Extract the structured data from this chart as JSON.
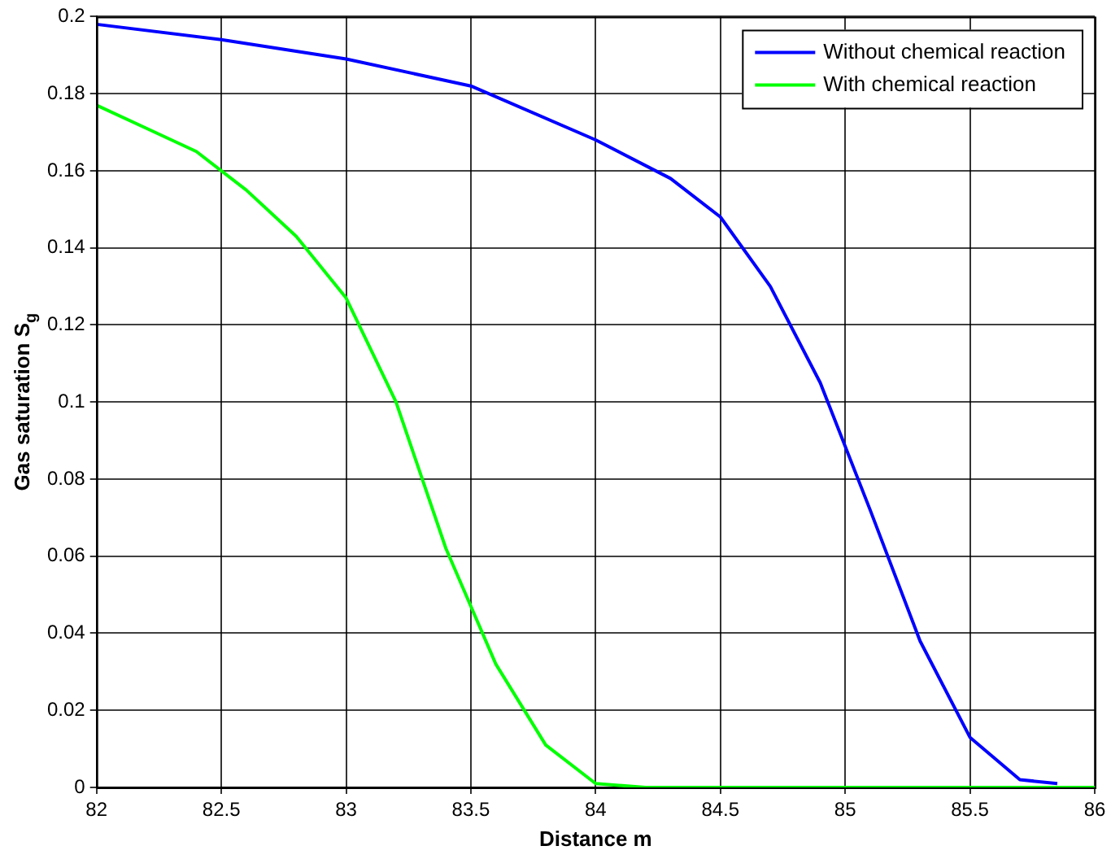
{
  "chart_data": {
    "type": "line",
    "xlabel": "Distance m",
    "ylabel": "Gas saturation S$_{g}$",
    "xlim": [
      82,
      86
    ],
    "ylim": [
      0,
      0.2
    ],
    "xticks": [
      82,
      82.5,
      83,
      83.5,
      84,
      84.5,
      85,
      85.5,
      86
    ],
    "yticks": [
      0,
      0.02,
      0.04,
      0.06,
      0.08,
      0.1,
      0.12,
      0.14,
      0.16,
      0.18,
      0.2
    ],
    "grid": true,
    "legend": "top right",
    "marker": "none",
    "line_style": "solid",
    "series": [
      {
        "name": "Without chemical reaction",
        "color": "#0000ff",
        "x": [
          82,
          82.5,
          83,
          83.5,
          84,
          84.3,
          84.5,
          84.7,
          84.9,
          85.1,
          85.3,
          85.5,
          85.7,
          85.85
        ],
        "values": [
          0.198,
          0.194,
          0.189,
          0.182,
          0.168,
          0.158,
          0.148,
          0.13,
          0.105,
          0.072,
          0.038,
          0.013,
          0.002,
          0.001
        ]
      },
      {
        "name": "With chemical reaction",
        "color": "#00ff00",
        "x": [
          82,
          82.2,
          82.4,
          82.6,
          82.8,
          83,
          83.2,
          83.4,
          83.6,
          83.8,
          84,
          84.2,
          86
        ],
        "values": [
          0.177,
          0.171,
          0.165,
          0.155,
          0.143,
          0.127,
          0.1,
          0.062,
          0.032,
          0.011,
          0.001,
          0,
          0
        ]
      }
    ]
  }
}
